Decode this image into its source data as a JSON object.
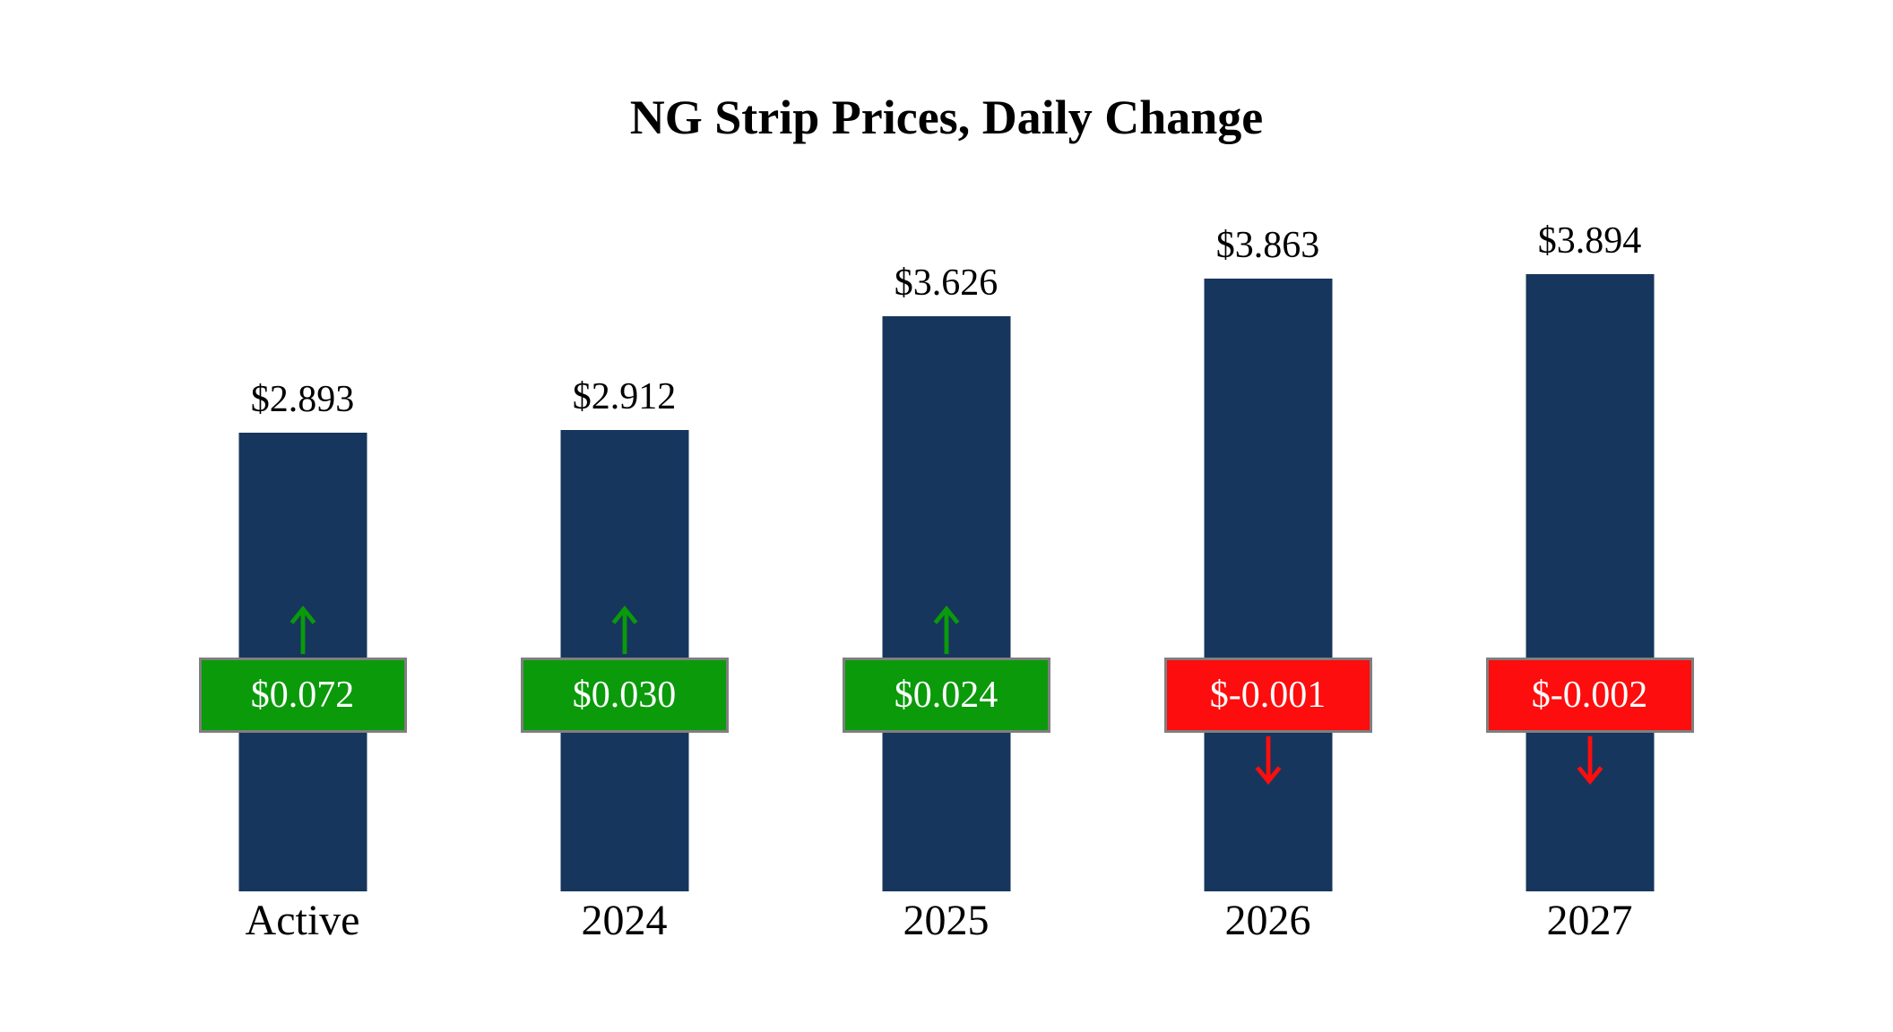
{
  "chart_data": {
    "type": "bar",
    "title": "NG Strip Prices, Daily Change",
    "categories": [
      "Active",
      "2024",
      "2025",
      "2026",
      "2027"
    ],
    "values": [
      2.893,
      2.912,
      3.626,
      3.863,
      3.894
    ],
    "value_labels": [
      "$2.893",
      "$2.912",
      "$3.626",
      "$3.863",
      "$3.894"
    ],
    "changes": [
      0.072,
      0.03,
      0.024,
      -0.001,
      -0.002
    ],
    "change_labels": [
      "$0.072",
      "$0.030",
      "$0.024",
      "$-0.001",
      "$-0.002"
    ],
    "directions": [
      "up",
      "up",
      "up",
      "down",
      "down"
    ],
    "xlabel": "",
    "ylabel": "",
    "ylim": [
      0,
      4
    ],
    "grid": false,
    "legend": "none",
    "colors": {
      "bar": "#17365d",
      "positive": "#0a9a0a",
      "negative": "#fd0d0d",
      "badge_border": "#7f7f7f",
      "badge_text": "#ffffff",
      "title_text": "#000000"
    }
  }
}
